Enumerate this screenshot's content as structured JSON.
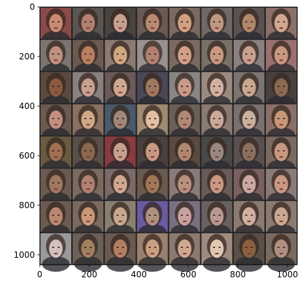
{
  "figure": {
    "type": "image-grid",
    "grid": {
      "rows": 8,
      "cols": 8
    },
    "image_extent": [
      1040,
      1040
    ],
    "xticks": [
      "0",
      "200",
      "400",
      "600",
      "800",
      "1000"
    ],
    "yticks": [
      "0",
      "200",
      "400",
      "600",
      "800",
      "1000"
    ],
    "tile_colors": [
      [
        "#8b4a4a",
        "#5a5550",
        "#4a4440",
        "#6a5a55",
        "#7a6a60",
        "#6e6868",
        "#5a5252",
        "#8a7068"
      ],
      [
        "#7a7570",
        "#6a5a50",
        "#8a7a70",
        "#9a9090",
        "#7a6a60",
        "#7a7068",
        "#8a8080",
        "#9a7070"
      ],
      [
        "#5a4a40",
        "#8a8080",
        "#6a5a58",
        "#4a4858",
        "#8a8585",
        "#9a8a80",
        "#7a7570",
        "#4a4040"
      ],
      [
        "#6a5a50",
        "#8a7060",
        "#4a5a6a",
        "#a08a70",
        "#6a6058",
        "#8a7a70",
        "#7a7070",
        "#8a7068"
      ],
      [
        "#6a5a40",
        "#5a5048",
        "#8a3a40",
        "#4a4040",
        "#5a4a40",
        "#4a4848",
        "#5a5050",
        "#7a6a60"
      ],
      [
        "#6a5a50",
        "#7a6a60",
        "#7a6a68",
        "#6a5a50",
        "#8a7a78",
        "#6a5a58",
        "#7a6060",
        "#8a7a78"
      ],
      [
        "#6a5a50",
        "#7a6a60",
        "#8a8070",
        "#6a5aa0",
        "#7a7080",
        "#6a6060",
        "#8a7a70",
        "#8a7a70"
      ],
      [
        "#9a9898",
        "#6a6058",
        "#6a5a50",
        "#9a8070",
        "#8a7a70",
        "#a08a80",
        "#5a5048",
        "#7a6a60"
      ]
    ],
    "face_colors": [
      [
        "#c88a70",
        "#b08070",
        "#c8a090",
        "#b88a70",
        "#d0a080",
        "#c09880",
        "#b08868",
        "#d0a890"
      ],
      [
        "#c09080",
        "#b88060",
        "#d0a880",
        "#b08070",
        "#d0a088",
        "#c89880",
        "#c8a090",
        "#c89880"
      ],
      [
        "#8a5a40",
        "#c8a090",
        "#d0a890",
        "#a07860",
        "#c89888",
        "#d0b0a0",
        "#c8a890",
        "#8a6a50"
      ],
      [
        "#c09080",
        "#d0a888",
        "#a08878",
        "#e0c0a0",
        "#b08878",
        "#c8a898",
        "#c8b0a0",
        "#c89878"
      ],
      [
        "#a07050",
        "#8a6850",
        "#c8a090",
        "#c89880",
        "#b08870",
        "#9a8880",
        "#8a7060",
        "#c89880"
      ],
      [
        "#a07860",
        "#b08070",
        "#d0a890",
        "#a07858",
        "#b89080",
        "#c89880",
        "#c8a8a0",
        "#c89880"
      ],
      [
        "#b88870",
        "#c89878",
        "#c8a890",
        "#b09080",
        "#c8a0a0",
        "#b89890",
        "#d0b0a0",
        "#c8a890"
      ],
      [
        "#d0c0c0",
        "#a08060",
        "#b08060",
        "#c8a080",
        "#d0a890",
        "#e0c8b0",
        "#8a6040",
        "#b09080"
      ]
    ]
  }
}
